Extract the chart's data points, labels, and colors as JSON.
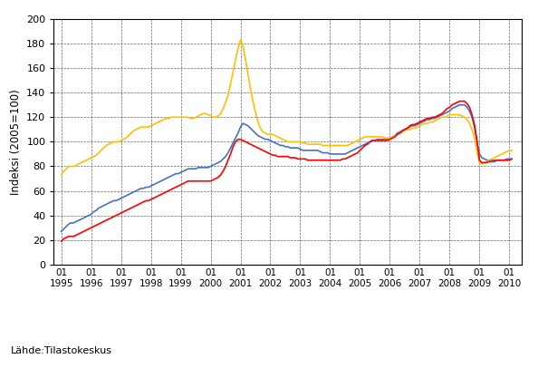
{
  "ylabel": "Indeksi (2005=100)",
  "source": "Lähde:Tilastokeskus",
  "ylim": [
    0,
    200
  ],
  "yticks": [
    0,
    20,
    40,
    60,
    80,
    100,
    120,
    140,
    160,
    180,
    200
  ],
  "line_colors": {
    "koko": "#4472C4",
    "kotimaan": "#FFC000",
    "vienti": "#FF0000"
  },
  "tick_years": [
    1995,
    1996,
    1997,
    1998,
    1999,
    2000,
    2001,
    2002,
    2003,
    2004,
    2005,
    2006,
    2007,
    2008,
    2009,
    2010
  ],
  "koko_data": [
    27,
    29,
    31,
    33,
    34,
    34,
    35,
    36,
    37,
    38,
    39,
    40,
    41,
    43,
    44,
    46,
    47,
    48,
    49,
    50,
    51,
    52,
    52,
    53,
    54,
    55,
    56,
    57,
    58,
    59,
    60,
    61,
    62,
    62,
    63,
    63,
    64,
    65,
    66,
    67,
    68,
    69,
    70,
    71,
    72,
    73,
    74,
    74,
    75,
    76,
    77,
    78,
    78,
    78,
    78,
    79,
    79,
    79,
    79,
    79,
    80,
    81,
    82,
    83,
    84,
    86,
    88,
    91,
    95,
    99,
    103,
    107,
    112,
    115,
    114,
    113,
    111,
    109,
    107,
    105,
    104,
    103,
    102,
    102,
    101,
    100,
    99,
    98,
    97,
    97,
    96,
    96,
    95,
    95,
    95,
    95,
    94,
    93,
    93,
    93,
    93,
    93,
    93,
    93,
    92,
    91,
    91,
    91,
    90,
    90,
    90,
    90,
    90,
    90,
    90,
    91,
    92,
    93,
    94,
    95,
    96,
    97,
    98,
    99,
    100,
    101,
    101,
    102,
    102,
    102,
    102,
    102,
    103,
    104,
    105,
    107,
    108,
    109,
    110,
    111,
    112,
    113,
    113,
    114,
    115,
    116,
    117,
    118,
    118,
    119,
    119,
    120,
    121,
    122,
    123,
    124,
    125,
    127,
    128,
    129,
    130,
    130,
    130,
    128,
    125,
    120,
    112,
    100,
    90,
    87,
    86,
    85,
    85,
    85,
    85,
    85,
    85,
    85,
    85,
    86,
    86,
    86
  ],
  "kotimaan_data": [
    73,
    76,
    78,
    80,
    80,
    80,
    81,
    82,
    83,
    84,
    85,
    86,
    87,
    88,
    89,
    91,
    93,
    95,
    97,
    98,
    99,
    100,
    100,
    100,
    101,
    102,
    103,
    105,
    107,
    109,
    110,
    111,
    112,
    112,
    112,
    112,
    113,
    114,
    115,
    116,
    117,
    118,
    119,
    119,
    120,
    120,
    120,
    120,
    120,
    120,
    120,
    120,
    119,
    119,
    120,
    121,
    122,
    123,
    123,
    122,
    121,
    120,
    120,
    121,
    123,
    127,
    132,
    138,
    147,
    157,
    167,
    176,
    183,
    178,
    167,
    155,
    143,
    133,
    124,
    116,
    111,
    108,
    107,
    106,
    106,
    106,
    105,
    104,
    103,
    102,
    101,
    100,
    100,
    100,
    100,
    100,
    100,
    99,
    99,
    98,
    98,
    98,
    98,
    98,
    98,
    97,
    97,
    97,
    97,
    97,
    97,
    97,
    97,
    97,
    97,
    97,
    98,
    99,
    100,
    101,
    102,
    103,
    104,
    104,
    104,
    104,
    104,
    104,
    104,
    104,
    103,
    103,
    103,
    104,
    105,
    106,
    107,
    108,
    109,
    110,
    110,
    111,
    111,
    112,
    113,
    114,
    115,
    115,
    116,
    116,
    117,
    118,
    119,
    120,
    120,
    121,
    122,
    122,
    122,
    122,
    122,
    121,
    120,
    118,
    115,
    110,
    103,
    92,
    83,
    82,
    83,
    84,
    85,
    86,
    87,
    88,
    89,
    90,
    91,
    92,
    93,
    93
  ],
  "vienti_data": [
    19,
    21,
    22,
    23,
    23,
    23,
    24,
    25,
    26,
    27,
    28,
    29,
    30,
    31,
    32,
    33,
    34,
    35,
    36,
    37,
    38,
    39,
    40,
    41,
    42,
    43,
    44,
    45,
    46,
    47,
    48,
    49,
    50,
    51,
    52,
    52,
    53,
    54,
    55,
    56,
    57,
    58,
    59,
    60,
    61,
    62,
    63,
    64,
    65,
    66,
    67,
    68,
    68,
    68,
    68,
    68,
    68,
    68,
    68,
    68,
    68,
    69,
    70,
    71,
    73,
    76,
    80,
    85,
    90,
    96,
    100,
    102,
    102,
    101,
    100,
    99,
    98,
    97,
    96,
    95,
    94,
    93,
    92,
    91,
    90,
    89,
    89,
    88,
    88,
    88,
    88,
    88,
    87,
    87,
    87,
    86,
    86,
    86,
    86,
    85,
    85,
    85,
    85,
    85,
    85,
    85,
    85,
    85,
    85,
    85,
    85,
    85,
    85,
    86,
    86,
    87,
    88,
    89,
    90,
    91,
    93,
    95,
    97,
    98,
    100,
    101,
    101,
    101,
    101,
    101,
    101,
    101,
    102,
    103,
    104,
    106,
    107,
    109,
    110,
    111,
    113,
    114,
    114,
    115,
    116,
    117,
    118,
    119,
    119,
    120,
    120,
    121,
    122,
    123,
    125,
    127,
    128,
    130,
    131,
    132,
    133,
    133,
    133,
    131,
    128,
    122,
    114,
    101,
    85,
    83,
    83,
    83,
    84,
    84,
    84,
    85,
    85,
    85,
    85,
    85,
    85,
    86
  ]
}
